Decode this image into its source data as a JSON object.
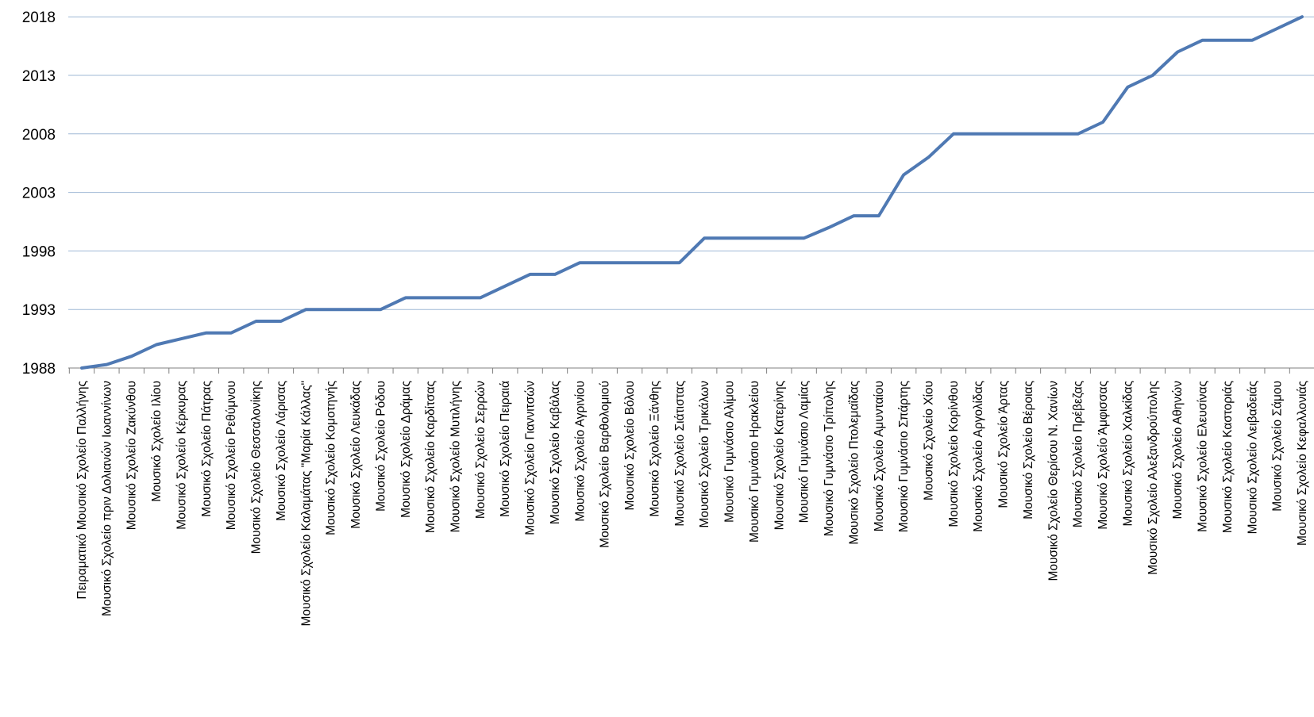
{
  "chart_data": {
    "type": "line",
    "title": "",
    "xlabel": "",
    "ylabel": "",
    "ylim": [
      1988,
      2019
    ],
    "yticks": [
      "1988",
      "1993",
      "1998",
      "2003",
      "2008",
      "2013",
      "2018"
    ],
    "grid": "horizontal",
    "legend": "none",
    "categories": [
      "Πειραματικό Μουσικό Σχολείο Παλλήνης",
      "Μουσικό Σχολείο πριν Δολιανών Ιωαννίνων",
      "Μουσικό Σχολείο Ζακύνθου",
      "Μουσικό Σχολείο Ιλίου",
      "Μουσικό Σχολείο Κέρκυρας",
      "Μουσικό Σχολείο Πάτρας",
      "Μουσικό Σχολείο Ρεθύμνου",
      "Μουσικό Σχολείο Θεσσαλονίκης",
      "Μουσικό Σχολείο Λάρισας",
      "Μουσικό Σχολείο Καλαμάτας \"Μαρία Κάλλας\"",
      "Μουσικό Σχολείο Κομοτηνής",
      "Μουσικό Σχολείο Λευκάδας",
      "Μουσικό Σχολείο Ρόδου",
      "Μουσικό Σχολείο Δράμας",
      "Μουσικό Σχολείο Καρδίτσας",
      "Μουσικό Σχολείο Μυτιλήνης",
      "Μουσικό Σχολείο Σερρών",
      "Μουσικό Σχολείο Πειραιά",
      "Μουσικό Σχολείο Γιαννιτσών",
      "Μουσικό Σχολείο Καβάλας",
      "Μουσικό Σχολείο Αγρινίου",
      "Μουσικό Σχολείο Βαρθολομιού",
      "Μουσικό Σχολείο Βόλου",
      "Μουσικό Σχολείο Ξάνθης",
      "Μουσικό Σχολείο Σιάτιστας",
      "Μουσικό Σχολείο Τρικάλων",
      "Μουσικό Γυμνάσιο Αλίμου",
      "Μουσικό Γυμνάσιο Ηρακλείου",
      "Μουσικό Σχολείο Κατερίνης",
      "Μουσικό Γυμνάσιο Λαμίας",
      "Μουσικό Γυμνάσιο Τρίπολης",
      "Μουσικό Σχολείο Πτολεμαΐδας",
      "Μουσικό Σχολείο Αμυνταίου",
      "Μουσικό Γυμνάσιο Σπάρτης",
      "Μουσικό Σχολείο Χίου",
      "Μουσικό Σχολείο Κορίνθου",
      "Μουσικό Σχολείο Αργολίδας",
      "Μουσικό Σχολείο Άρτας",
      "Μουσικό Σχολείο Βέροιας",
      "Μουσικό Σχολείο Θερίσου Ν. Χανίων",
      "Μουσικό Σχολείο Πρέβεζας",
      "Μουσικό Σχολείο Άμφισσας",
      "Μουσικό Σχολείο Χαλκίδας",
      "Μουσικό Σχολείο Αλεξανδρούπολης",
      "Μουσικό Σχολείο Αθηνών",
      "Μουσικό Σχολείο Ελευσίνας",
      "Μουσικό Σχολείο Καστοριάς",
      "Μουσικό Σχολείο Λειβαδειάς",
      "Μουσικό Σχολείο Σάμου",
      "Μουσικό Σχολείο Κεφαλλονιάς"
    ],
    "series": [
      {
        "color": "#4f79b3",
        "values": [
          1988,
          1988.3,
          1989,
          1990,
          1990.5,
          1991,
          1991,
          1992,
          1992,
          1993,
          1993,
          1993,
          1993,
          1994,
          1994,
          1994,
          1994,
          1995,
          1996,
          1996,
          1997,
          1997,
          1997,
          1997,
          1997,
          1999.1,
          1999.1,
          1999.1,
          1999.1,
          1999.1,
          2000,
          2001,
          2001,
          2004.5,
          2006,
          2008,
          2008,
          2008,
          2008,
          2008,
          2008,
          2009,
          2012,
          2013,
          2015,
          2016,
          2016,
          2016,
          2017,
          2018
        ]
      }
    ]
  }
}
